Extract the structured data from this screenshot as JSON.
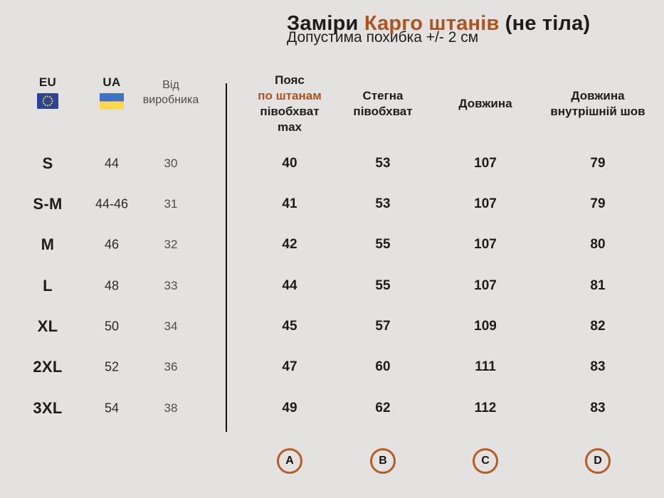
{
  "colors": {
    "background": "#e3e2e0",
    "accent": "#b0521b",
    "muted": "#4e4c4a",
    "marker_ring": "#b45e24",
    "eu_flag_blue": "#2a4597",
    "eu_flag_stars": "#ffd821",
    "ua_flag_blue": "#3d72c8",
    "ua_flag_yellow": "#ffd84a"
  },
  "title": {
    "prefix": "Заміри ",
    "highlight": "Карго штанів",
    "suffix": " (не тіла)",
    "subtitle": "Допустима похибка +/- 2 см"
  },
  "table": {
    "size_columns": {
      "eu_label": "EU",
      "ua_label": "UA",
      "manufacturer_lines": [
        "Від",
        "виробника"
      ]
    },
    "measure_columns": [
      {
        "id": "waist",
        "lines": [
          "Пояс",
          "по штанам",
          "півобхват",
          "max"
        ],
        "accent_line": 1,
        "marker": "A"
      },
      {
        "id": "hips",
        "lines": [
          "Стегна",
          "півобхват"
        ],
        "accent_line": -1,
        "marker": "B"
      },
      {
        "id": "length",
        "lines": [
          "Довжина"
        ],
        "accent_line": -1,
        "marker": "C"
      },
      {
        "id": "inseam",
        "lines": [
          "Довжина",
          "внутрішній шов"
        ],
        "accent_line": -1,
        "marker": "D"
      }
    ],
    "rows": [
      {
        "size": "S",
        "ua": "44",
        "manufacturer": "30",
        "values": [
          "40",
          "53",
          "107",
          "79"
        ]
      },
      {
        "size": "S-M",
        "ua": "44-46",
        "manufacturer": "31",
        "values": [
          "41",
          "53",
          "107",
          "79"
        ]
      },
      {
        "size": "M",
        "ua": "46",
        "manufacturer": "32",
        "values": [
          "42",
          "55",
          "107",
          "80"
        ]
      },
      {
        "size": "L",
        "ua": "48",
        "manufacturer": "33",
        "values": [
          "44",
          "55",
          "107",
          "81"
        ]
      },
      {
        "size": "XL",
        "ua": "50",
        "manufacturer": "34",
        "values": [
          "45",
          "57",
          "109",
          "82"
        ]
      },
      {
        "size": "2XL",
        "ua": "52",
        "manufacturer": "36",
        "values": [
          "47",
          "60",
          "111",
          "83"
        ]
      },
      {
        "size": "3XL",
        "ua": "54",
        "manufacturer": "38",
        "values": [
          "49",
          "62",
          "112",
          "83"
        ]
      }
    ]
  }
}
